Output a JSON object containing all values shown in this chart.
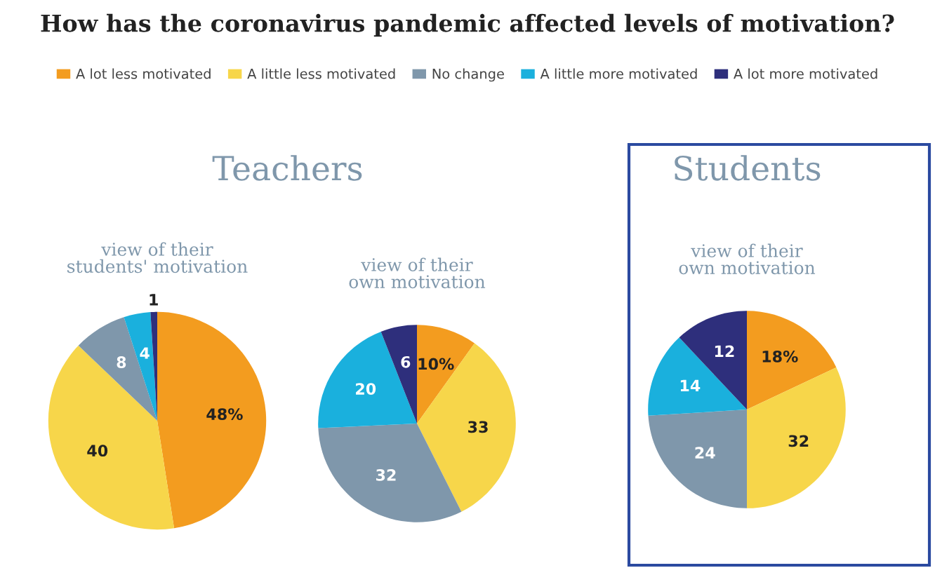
{
  "chart_data": [
    {
      "type": "pie",
      "title": "How has the coronavirus pandemic affected levels of motivation?",
      "annotations": [
        "Teachers"
      ],
      "subtitle": "view of their\nstudents' motivation",
      "legend": "top",
      "categories": [
        "A lot less motivated",
        "A little less motivated",
        "No change",
        "A little more motivated",
        "A lot more motivated"
      ],
      "colors": [
        "#f39c1f",
        "#f7d64a",
        "#7f97ab",
        "#1ab0dd",
        "#2e2f7c"
      ],
      "values": [
        48,
        40,
        8,
        4,
        1
      ],
      "value_labels": [
        "48%",
        "40",
        "8",
        "4",
        "1"
      ]
    },
    {
      "type": "pie",
      "subtitle": "view of their\nown motivation",
      "categories": [
        null,
        null,
        null,
        null,
        null
      ],
      "colors": [
        "#f39c1f",
        "#f7d64a",
        "#7f97ab",
        "#1ab0dd",
        "#2e2f7c"
      ],
      "values": [
        10,
        33,
        32,
        20,
        6
      ],
      "value_labels": [
        "10%",
        "33",
        "32",
        "20",
        "6"
      ]
    },
    {
      "type": "pie",
      "annotations": [
        "Students"
      ],
      "subtitle": "view of their\nown motivation",
      "categories": [
        null,
        null,
        null,
        null,
        null
      ],
      "colors": [
        "#f39c1f",
        "#f7d64a",
        "#7f97ab",
        "#1ab0dd",
        "#2e2f7c"
      ],
      "values": [
        18,
        32,
        24,
        14,
        12
      ],
      "value_labels": [
        "18%",
        "32",
        "24",
        "14",
        "12"
      ]
    }
  ]
}
